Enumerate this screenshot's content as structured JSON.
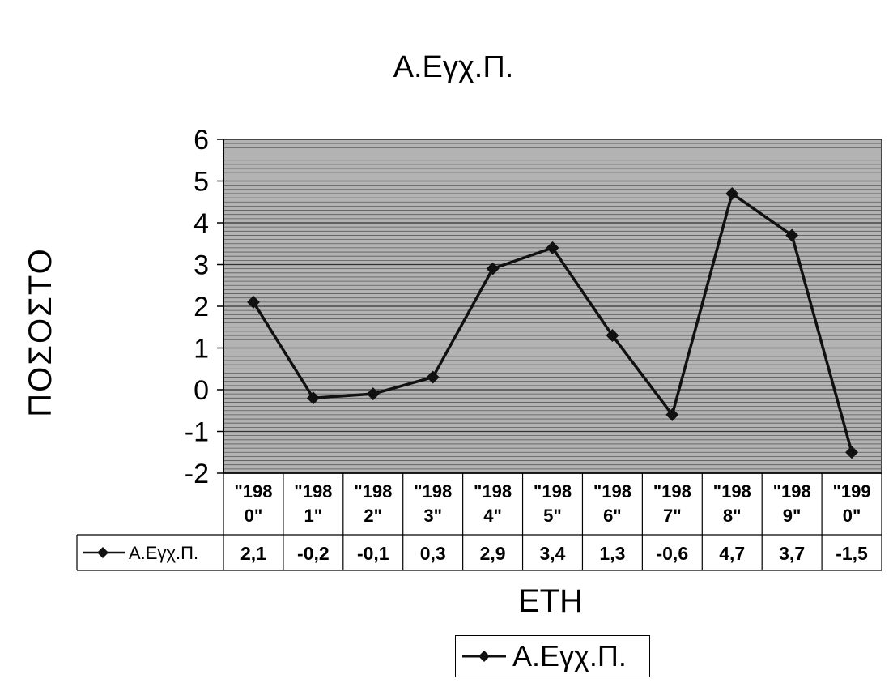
{
  "chart_data": {
    "type": "line",
    "title": "Α.Εγχ.Π.",
    "xlabel": "ΕΤΗ",
    "ylabel": "ΠΟΣΟΣΤΟ",
    "categories": [
      "\"198\n0\"",
      "\"198\n1\"",
      "\"198\n2\"",
      "\"198\n3\"",
      "\"198\n4\"",
      "\"198\n5\"",
      "\"198\n6\"",
      "\"198\n7\"",
      "\"198\n8\"",
      "\"198\n9\"",
      "\"199\n0\""
    ],
    "series": [
      {
        "name": "Α.Εγχ.Π.",
        "values": [
          2.1,
          -0.2,
          -0.1,
          0.3,
          2.9,
          3.4,
          1.3,
          -0.6,
          4.7,
          3.7,
          -1.5
        ],
        "value_labels": [
          "2,1",
          "-0,2",
          "-0,1",
          "0,3",
          "2,9",
          "3,4",
          "1,3",
          "-0,6",
          "4,7",
          "3,7",
          "-1,5"
        ],
        "color": "#111111",
        "marker": "diamond"
      }
    ],
    "ylim": [
      -2,
      6
    ],
    "yticks": [
      "6",
      "5",
      "4",
      "3",
      "2",
      "1",
      "0",
      "-1",
      "-2"
    ],
    "grid": true,
    "plot_background": "#b3b3b3",
    "data_table": true,
    "legend": "bottom-right"
  }
}
